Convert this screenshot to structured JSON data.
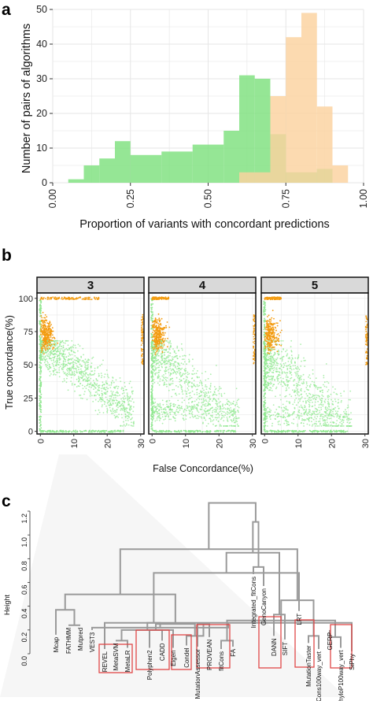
{
  "panels": {
    "a": {
      "label": "a"
    },
    "b": {
      "label": "b"
    },
    "c": {
      "label": "c"
    }
  },
  "chart_data": [
    {
      "type": "bar",
      "panel": "a",
      "xlabel": "Proportion of variants with concordant predictions",
      "ylabel": "Number of pairs of algorithms",
      "xlim": [
        0,
        1
      ],
      "ylim": [
        0,
        50
      ],
      "xticks": [
        "0.00",
        "0.25",
        "0.50",
        "0.75",
        "1.00"
      ],
      "yticks": [
        "0",
        "10",
        "20",
        "30",
        "40",
        "50"
      ],
      "grid": true,
      "series": [
        {
          "color": "#7ee07e",
          "bins": [
            [
              0.05,
              0.1,
              1
            ],
            [
              0.1,
              0.15,
              5
            ],
            [
              0.15,
              0.2,
              7
            ],
            [
              0.2,
              0.25,
              12
            ],
            [
              0.25,
              0.3,
              8
            ],
            [
              0.3,
              0.35,
              8
            ],
            [
              0.35,
              0.4,
              9
            ],
            [
              0.4,
              0.45,
              9
            ],
            [
              0.45,
              0.5,
              11
            ],
            [
              0.5,
              0.55,
              11
            ],
            [
              0.55,
              0.6,
              15
            ],
            [
              0.6,
              0.65,
              31
            ],
            [
              0.65,
              0.7,
              30
            ],
            [
              0.7,
              0.75,
              14
            ],
            [
              0.75,
              0.8,
              3
            ],
            [
              0.8,
              0.85,
              3
            ],
            [
              0.85,
              0.9,
              4
            ]
          ]
        },
        {
          "color": "#fbd29f",
          "bins": [
            [
              0.6,
              0.65,
              3
            ],
            [
              0.65,
              0.7,
              3
            ],
            [
              0.7,
              0.75,
              25
            ],
            [
              0.75,
              0.8,
              42
            ],
            [
              0.8,
              0.85,
              49
            ],
            [
              0.85,
              0.9,
              22
            ],
            [
              0.9,
              0.95,
              5
            ]
          ]
        }
      ]
    },
    {
      "type": "scatter",
      "panel": "b",
      "xlabel": "False Concordance(%)",
      "ylabel": "True concordance(%)",
      "xlim": [
        -1,
        31
      ],
      "ylim": [
        -2,
        104
      ],
      "xticks": [
        "0",
        "10",
        "20",
        "30"
      ],
      "yticks": [
        "0",
        "25",
        "50",
        "75",
        "100"
      ],
      "facets": [
        "3",
        "4",
        "5"
      ],
      "grid": true,
      "series": [
        {
          "color": "#f39c12",
          "description": "near-perfect true concordance cluster"
        },
        {
          "color": "#90e890",
          "description": "remaining algorithm combinations"
        }
      ]
    },
    {
      "type": "dendrogram",
      "panel": "c",
      "ylabel": "Height",
      "ylim": [
        0,
        1.2
      ],
      "yticks": [
        "0.0",
        "0.2",
        "0.4",
        "0.6",
        "0.8",
        "1.0",
        "1.2"
      ],
      "leaves": [
        "Mcap",
        "FATHMM",
        "Mutpred",
        "VEST3",
        "REVEL",
        "MetaSVM",
        "MetaLR",
        "Polyphen2",
        "CADD",
        "Eigen",
        "Condel",
        "MutationAssessor",
        "PROVEAN",
        "fitCons",
        "FA",
        "Integrated_fitCons",
        "GenoCanyon",
        "DANN",
        "SIFT",
        "LRT",
        "MutationTaster",
        "phastCons100way_vert",
        "GERP",
        "phyloP100way_vert",
        "SiPhy"
      ]
    }
  ]
}
